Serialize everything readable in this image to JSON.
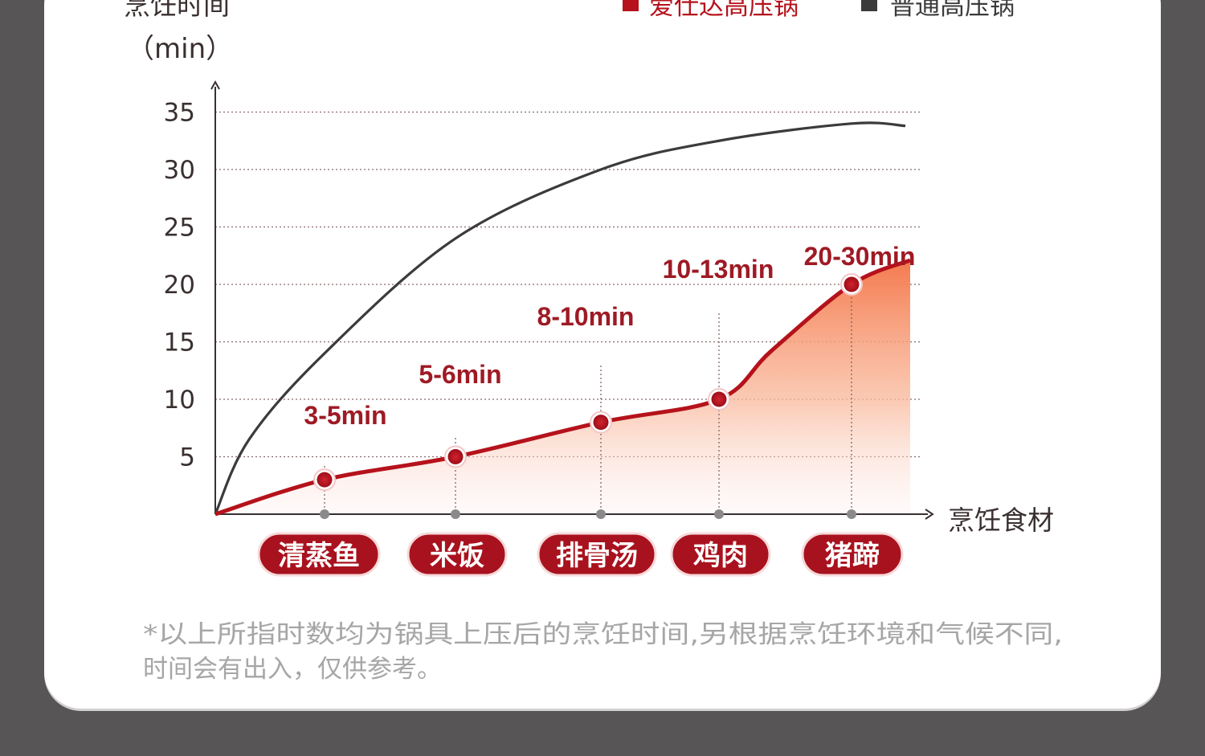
{
  "chart_data": {
    "type": "line",
    "ylabel": "烹饪时间",
    "yunit": "（min）",
    "xlabel": "烹饪食材",
    "ylim": [
      0,
      35
    ],
    "yticks": [
      5,
      10,
      15,
      20,
      25,
      30,
      35
    ],
    "categories": [
      "清蒸鱼",
      "米饭",
      "排骨汤",
      "鸡肉",
      "猪蹄"
    ],
    "series": [
      {
        "name": "爱仕达高压锅",
        "color": "#b5121b",
        "values": [
          3,
          5,
          8,
          10,
          20
        ],
        "range_labels": [
          "3-5min",
          "5-6min",
          "8-10min",
          "10-13min",
          "20-30min"
        ]
      },
      {
        "name": "普通高压锅",
        "color": "#3b3b3b",
        "values": [
          14,
          24,
          30,
          32.5,
          34
        ]
      }
    ],
    "legend_position": "top-right",
    "grid": true
  },
  "footnote": {
    "line1": "*以上所指时数均为锅具上压后的烹饪时间,另根据烹饪环境和气候不同,",
    "line2": "时间会有出入，仅供参考。"
  }
}
